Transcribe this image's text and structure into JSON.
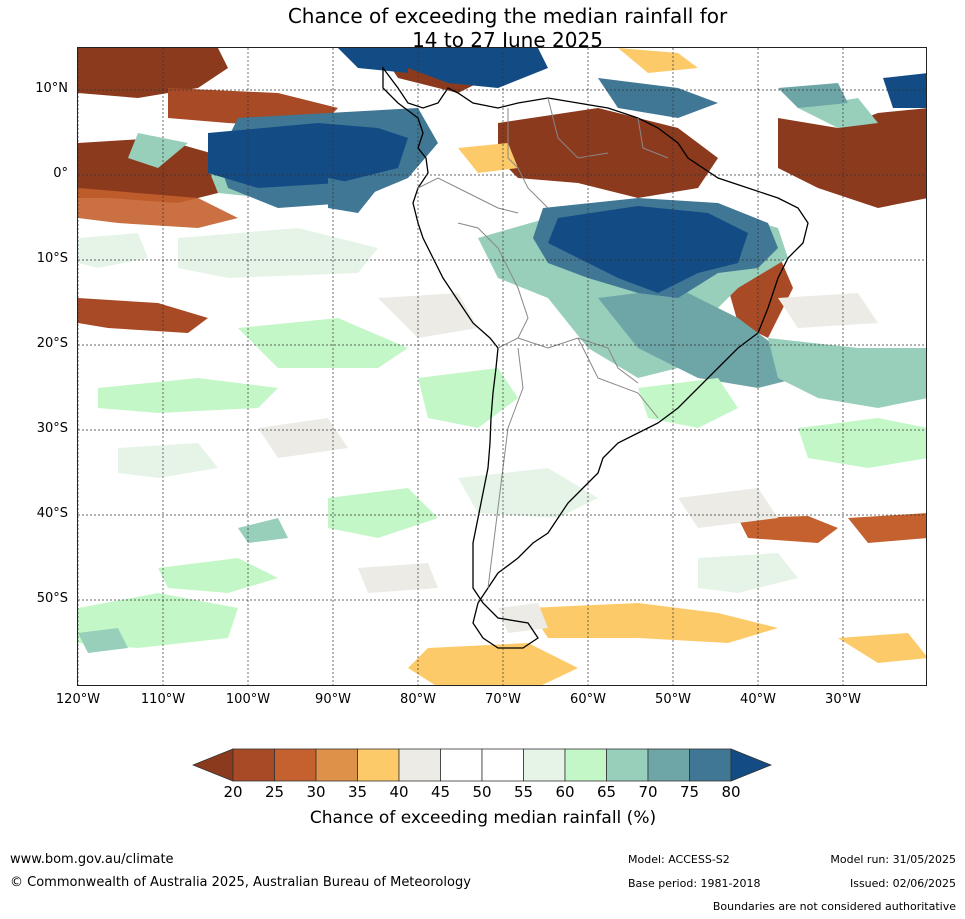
{
  "title": {
    "line1": "Chance of exceeding the median rainfall for",
    "line2": "14 to 27 June 2025"
  },
  "map": {
    "lat_labels": [
      "10°N",
      "0°",
      "10°S",
      "20°S",
      "30°S",
      "40°S",
      "50°S"
    ],
    "lon_labels": [
      "120°W",
      "110°W",
      "100°W",
      "90°W",
      "80°W",
      "70°W",
      "60°W",
      "50°W",
      "40°W",
      "30°W"
    ],
    "grid": true
  },
  "colorbar": {
    "ticks": [
      "20",
      "25",
      "30",
      "35",
      "40",
      "45",
      "50",
      "55",
      "60",
      "65",
      "70",
      "75",
      "80"
    ],
    "colors": [
      "#8c3a1e",
      "#a84a26",
      "#c4612e",
      "#de9148",
      "#fdca6a",
      "#ecebe6",
      "#ffffff",
      "#ffffff",
      "#e6f4e8",
      "#c4f7c7",
      "#98cfba",
      "#6ea6a8",
      "#407795",
      "#134c85"
    ],
    "label": "Chance of exceeding median rainfall (%)"
  },
  "footer": {
    "website": "www.bom.gov.au/climate",
    "copyright": "© Commonwealth of Australia 2025, Australian Bureau of Meteorology",
    "model": "Model: ACCESS-S2",
    "base_period": "Base period: 1981-2018",
    "model_run": "Model run: 31/05/2025",
    "issued": "Issued: 02/06/2025",
    "disclaimer": "Boundaries are not considered authoritative"
  }
}
